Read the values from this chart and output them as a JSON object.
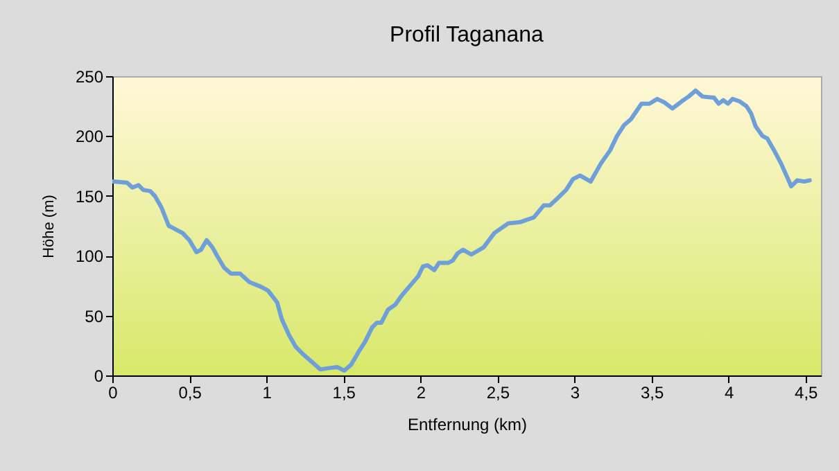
{
  "chart_data": {
    "type": "line",
    "title": "Profil Taganana",
    "xlabel": "Entfernung (km)",
    "ylabel": "Höhe (m)",
    "x": [
      0.006,
      0.096,
      0.13,
      0.17,
      0.2,
      0.246,
      0.276,
      0.32,
      0.366,
      0.396,
      0.456,
      0.5,
      0.546,
      0.576,
      0.612,
      0.65,
      0.68,
      0.726,
      0.77,
      0.83,
      0.89,
      0.966,
      1.01,
      1.07,
      1.1,
      1.146,
      1.19,
      1.236,
      1.28,
      1.35,
      1.4,
      1.46,
      1.506,
      1.55,
      1.6,
      1.64,
      1.686,
      1.716,
      1.746,
      1.79,
      1.836,
      1.88,
      1.94,
      1.986,
      2.016,
      2.046,
      2.09,
      2.12,
      2.18,
      2.21,
      2.241,
      2.277,
      2.33,
      2.41,
      2.48,
      2.57,
      2.645,
      2.69,
      2.736,
      2.8,
      2.84,
      2.89,
      2.946,
      2.99,
      3.036,
      3.105,
      3.171,
      3.231,
      3.276,
      3.321,
      3.366,
      3.435,
      3.486,
      3.537,
      3.585,
      3.636,
      3.696,
      3.741,
      3.786,
      3.831,
      3.906,
      3.936,
      3.966,
      3.996,
      4.026,
      4.071,
      4.116,
      4.146,
      4.176,
      4.221,
      4.251,
      4.296,
      4.341,
      4.407,
      4.446,
      4.491,
      4.527
    ],
    "series": [
      {
        "color": "#6f9fd8",
        "values": [
          162,
          161,
          157,
          159,
          155,
          154,
          150,
          140,
          125,
          123,
          119,
          113,
          103,
          105,
          113,
          107,
          100,
          90,
          85,
          85,
          78,
          74,
          71,
          61,
          47,
          34,
          24,
          18,
          13,
          5,
          6,
          7,
          4,
          9,
          20,
          28,
          40,
          44,
          44,
          55,
          59,
          67,
          76,
          83,
          91,
          92,
          88,
          94,
          94,
          96,
          102,
          105,
          101,
          107,
          119,
          127,
          128,
          130,
          132,
          142,
          142,
          148,
          155,
          164,
          167,
          162,
          177,
          188,
          200,
          209,
          214,
          227,
          227,
          231,
          228,
          223,
          229,
          233,
          238,
          233,
          232,
          227,
          230,
          227,
          231,
          229,
          225,
          219,
          208,
          200,
          198,
          188,
          177,
          158,
          163,
          162,
          163
        ]
      }
    ],
    "xlim": [
      0,
      4.6
    ],
    "ylim": [
      0,
      250
    ],
    "xticks": [
      0,
      {
        "value": 0.5,
        "label": "0,5"
      },
      1,
      {
        "value": 1.5,
        "label": "1,5"
      },
      2,
      {
        "value": 2.5,
        "label": "2,5"
      },
      3,
      {
        "value": 3.5,
        "label": "3,5"
      },
      4,
      {
        "value": 4.5,
        "label": "4,5"
      }
    ],
    "yticks": [
      0,
      50,
      100,
      150,
      200,
      250
    ],
    "grid": false,
    "marker": "none",
    "line_style": "solid"
  }
}
